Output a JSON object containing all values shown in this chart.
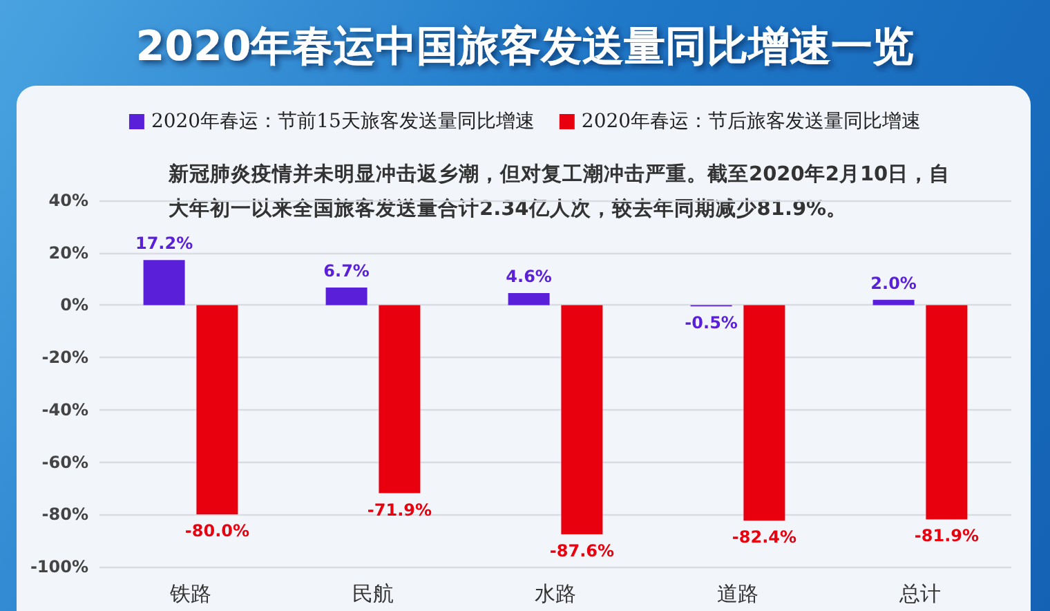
{
  "chart_data": {
    "type": "bar",
    "title": "2020年春运中国旅客发送量同比增速一览",
    "annotations": [
      "新冠肺炎疫情并未明显冲击返乡潮，但对复工潮冲击严重。截至2020年2月10日，自大年初一以来全国旅客发送量合计2.34亿人次，较去年同期减少81.9%。"
    ],
    "categories": [
      "铁路",
      "民航",
      "水路",
      "道路",
      "总计"
    ],
    "series": [
      {
        "name": "2020年春运：节前15天旅客发送量同比增速",
        "color": "#5a1fd8",
        "values": [
          17.2,
          6.7,
          4.6,
          -0.5,
          2.0
        ],
        "value_labels": [
          "17.2%",
          "6.7%",
          "4.6%",
          "-0.5%",
          "2.0%"
        ]
      },
      {
        "name": "2020年春运：节后旅客发送量同比增速",
        "color": "#e8000e",
        "values": [
          -80.0,
          -71.9,
          -87.6,
          -82.4,
          -81.9
        ],
        "value_labels": [
          "-80.0%",
          "-71.9%",
          "-87.6%",
          "-82.4%",
          "-81.9%"
        ]
      }
    ],
    "ylim": [
      -100,
      40
    ],
    "yticks": [
      {
        "value": 40,
        "label": "40%"
      },
      {
        "value": 20,
        "label": "20%"
      },
      {
        "value": 0,
        "label": "0%"
      },
      {
        "value": -20,
        "label": "-20%"
      },
      {
        "value": -40,
        "label": "-40%"
      },
      {
        "value": -60,
        "label": "-60%"
      },
      {
        "value": -80,
        "label": "-80%"
      },
      {
        "value": -100,
        "label": "-100%"
      }
    ],
    "grid": "y",
    "legend": "top"
  }
}
